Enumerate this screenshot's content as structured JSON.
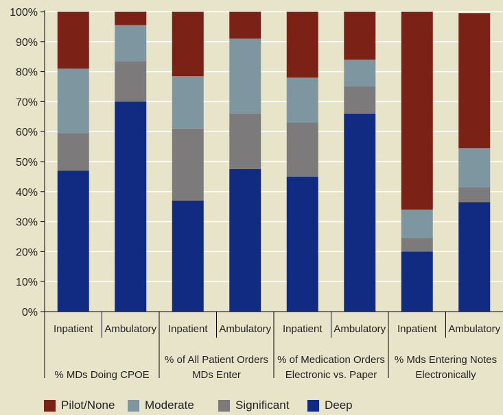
{
  "chart_data": {
    "type": "bar",
    "stacked": true,
    "ylim": [
      0,
      100
    ],
    "yticks": [
      "0%",
      "10%",
      "20%",
      "30%",
      "40%",
      "50%",
      "60%",
      "70%",
      "80%",
      "90%",
      "100%"
    ],
    "grid": true,
    "categories": [
      "Inpatient",
      "Ambulatory",
      "Inpatient",
      "Ambulatory",
      "Inpatient",
      "Ambulatory",
      "Inpatient",
      "Ambulatory"
    ],
    "groups": [
      {
        "lines": [
          "% MDs Doing CPOE"
        ]
      },
      {
        "lines": [
          "% of All Patient Orders",
          "MDs Enter"
        ]
      },
      {
        "lines": [
          "% of Medication Orders",
          "Electronic vs. Paper"
        ]
      },
      {
        "lines": [
          "% Mds Entering Notes",
          "Electronically"
        ]
      }
    ],
    "series": [
      {
        "name": "Deep",
        "color": "#112b82",
        "values": [
          47,
          70,
          37,
          47.5,
          45,
          66,
          20,
          36.5
        ]
      },
      {
        "name": "Significant",
        "color": "#7d7a7c",
        "values": [
          12.5,
          13.5,
          24,
          18.5,
          18,
          9,
          4.5,
          5
        ]
      },
      {
        "name": "Moderate",
        "color": "#7d96a0",
        "values": [
          21.5,
          12,
          17.5,
          25,
          15,
          9,
          9.5,
          13
        ]
      },
      {
        "name": "Pilot/None",
        "color": "#7c2116",
        "values": [
          19,
          4.5,
          21.5,
          9,
          22,
          16,
          66,
          45
        ]
      }
    ],
    "legend_order": [
      "Pilot/None",
      "Moderate",
      "Significant",
      "Deep"
    ],
    "legend": "bottom"
  }
}
